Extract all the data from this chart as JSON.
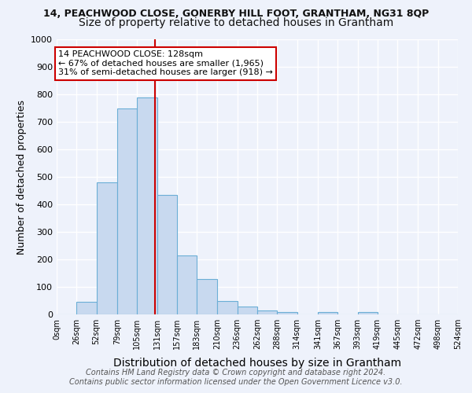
{
  "title_line1": "14, PEACHWOOD CLOSE, GONERBY HILL FOOT, GRANTHAM, NG31 8QP",
  "title_line2": "Size of property relative to detached houses in Grantham",
  "xlabel": "Distribution of detached houses by size in Grantham",
  "ylabel": "Number of detached properties",
  "footer_line1": "Contains HM Land Registry data © Crown copyright and database right 2024.",
  "footer_line2": "Contains public sector information licensed under the Open Government Licence v3.0.",
  "bin_edges": [
    0,
    26,
    52,
    79,
    105,
    131,
    157,
    183,
    210,
    236,
    262,
    288,
    314,
    341,
    367,
    393,
    419,
    445,
    472,
    498,
    524
  ],
  "bar_heights": [
    0,
    45,
    480,
    750,
    790,
    435,
    215,
    130,
    50,
    28,
    15,
    10,
    0,
    8,
    0,
    8,
    0,
    0,
    0,
    0
  ],
  "bar_color": "#c8d9ef",
  "bar_edge_color": "#6baed6",
  "vline_x": 128,
  "vline_color": "#cc0000",
  "annotation_line1": "14 PEACHWOOD CLOSE: 128sqm",
  "annotation_line2": "← 67% of detached houses are smaller (1,965)",
  "annotation_line3": "31% of semi-detached houses are larger (918) →",
  "annotation_box_color": "#ffffff",
  "annotation_box_edge": "#cc0000",
  "ylim": [
    0,
    1000
  ],
  "yticks": [
    0,
    100,
    200,
    300,
    400,
    500,
    600,
    700,
    800,
    900,
    1000
  ],
  "tick_labels": [
    "0sqm",
    "26sqm",
    "52sqm",
    "79sqm",
    "105sqm",
    "131sqm",
    "157sqm",
    "183sqm",
    "210sqm",
    "236sqm",
    "262sqm",
    "288sqm",
    "314sqm",
    "341sqm",
    "367sqm",
    "393sqm",
    "419sqm",
    "445sqm",
    "472sqm",
    "498sqm",
    "524sqm"
  ],
  "bg_color": "#eef2fb",
  "grid_color": "#ffffff",
  "title1_fontsize": 9,
  "title2_fontsize": 10,
  "xlabel_fontsize": 10,
  "ylabel_fontsize": 9,
  "tick_fontsize": 7,
  "annotation_fontsize": 8,
  "footer_fontsize": 7
}
